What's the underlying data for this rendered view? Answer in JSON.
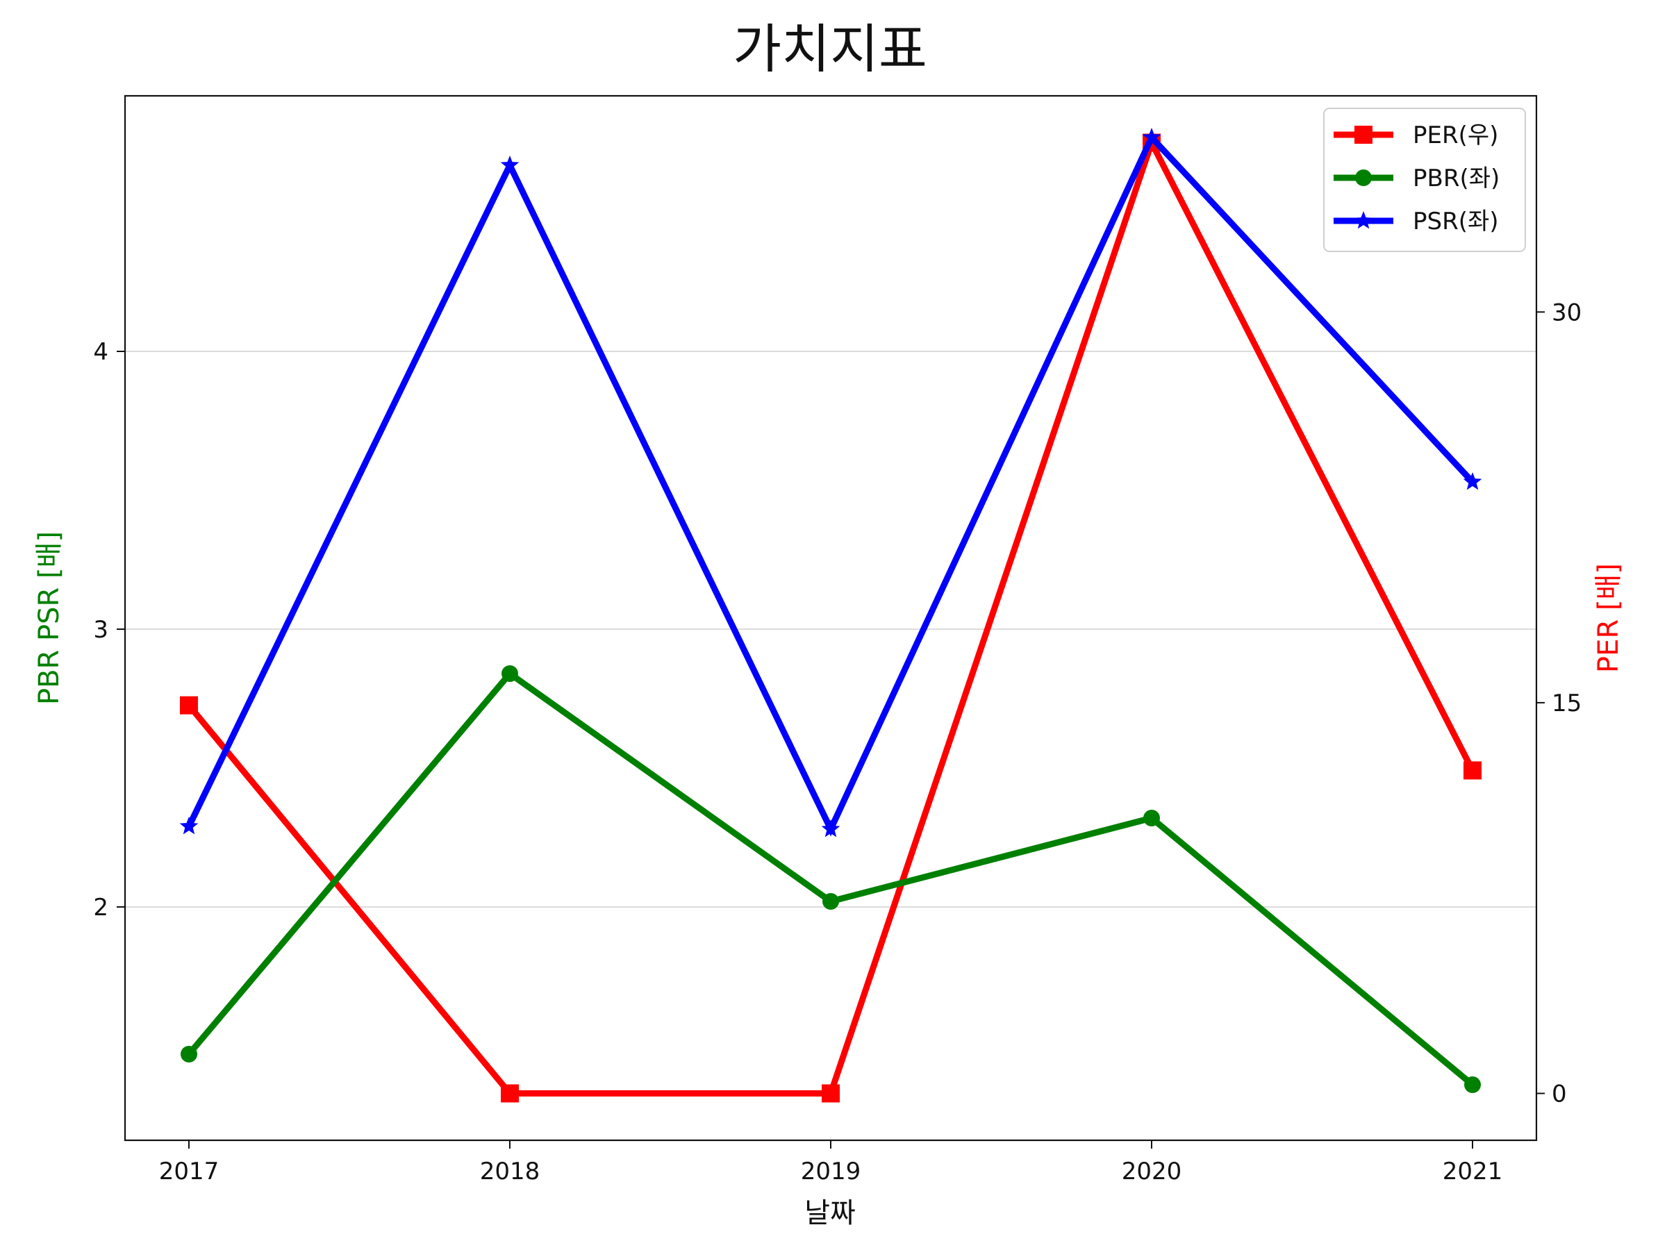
{
  "chart_data": {
    "type": "line",
    "title": "가치지표",
    "xlabel": "날짜",
    "ylabel_left": "PBR PSR [배]",
    "ylabel_right": "PER [배]",
    "categories": [
      "2017",
      "2018",
      "2019",
      "2020",
      "2021"
    ],
    "left_axis": {
      "ylim": [
        1.16,
        4.92
      ],
      "ticks": [
        2,
        3,
        4
      ],
      "grid": true
    },
    "right_axis": {
      "ylim": [
        -1.8,
        38.3
      ],
      "ticks": [
        0,
        15,
        30
      ]
    },
    "series": [
      {
        "name": "PER(우)",
        "axis": "right",
        "color": "#ff0000",
        "marker": "square",
        "values": [
          14.9,
          0,
          0,
          36.5,
          12.4
        ]
      },
      {
        "name": "PBR(좌)",
        "axis": "left",
        "color": "#008000",
        "marker": "circle",
        "values": [
          1.47,
          2.84,
          2.02,
          2.32,
          1.36
        ]
      },
      {
        "name": "PSR(좌)",
        "axis": "left",
        "color": "#0000ff",
        "marker": "star",
        "values": [
          2.29,
          4.67,
          2.28,
          4.77,
          3.53
        ]
      }
    ],
    "legend": {
      "position": "top-right",
      "items": [
        "PER(우)",
        "PBR(좌)",
        "PSR(좌)"
      ]
    }
  }
}
